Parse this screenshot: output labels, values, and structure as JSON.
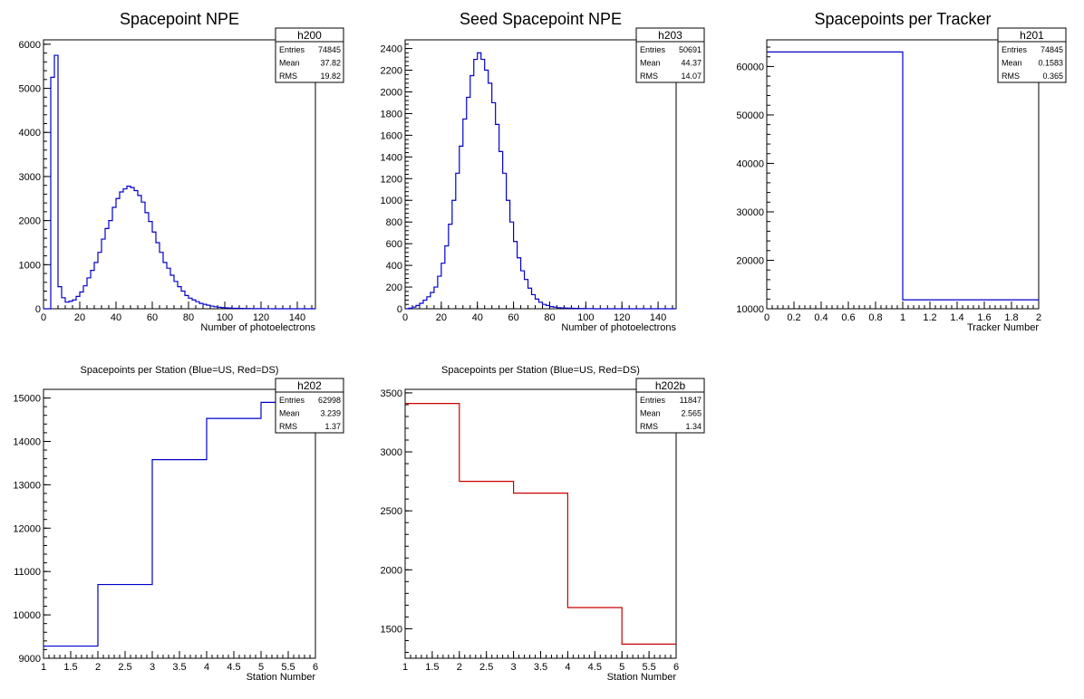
{
  "chart_data": [
    {
      "id": "h200",
      "type": "histogram",
      "title": "Spacepoint NPE",
      "xlabel": "Number of photoelectrons",
      "ylabel": "",
      "xlim": [
        0,
        150
      ],
      "ylim": [
        0,
        6100
      ],
      "xticks": [
        0,
        20,
        40,
        60,
        80,
        100,
        120,
        140
      ],
      "yticks": [
        0,
        1000,
        2000,
        3000,
        4000,
        5000,
        6000
      ],
      "color": "#0000cc",
      "bin_width": 2,
      "values": [
        0,
        0,
        5250,
        5750,
        500,
        250,
        150,
        170,
        200,
        280,
        380,
        520,
        700,
        870,
        1050,
        1280,
        1580,
        1820,
        2000,
        2300,
        2500,
        2650,
        2720,
        2780,
        2750,
        2680,
        2570,
        2420,
        2180,
        1980,
        1740,
        1500,
        1280,
        1050,
        920,
        760,
        620,
        500,
        400,
        300,
        240,
        200,
        160,
        120,
        100,
        80,
        60,
        45,
        35,
        25,
        20,
        15,
        12,
        10,
        8,
        6,
        5,
        4,
        3,
        2,
        2,
        1,
        1,
        0,
        0,
        0,
        0,
        0,
        0,
        0,
        0,
        0,
        0,
        0,
        0
      ],
      "stats": {
        "name": "h200",
        "entries_label": "Entries",
        "entries": "74845",
        "mean_label": "Mean",
        "mean": "37.82",
        "rms_label": "RMS",
        "rms": "19.82"
      }
    },
    {
      "id": "h203",
      "type": "histogram",
      "title": "Seed Spacepoint NPE",
      "xlabel": "Number of photoelectrons",
      "ylabel": "",
      "xlim": [
        0,
        150
      ],
      "ylim": [
        0,
        2480
      ],
      "xticks": [
        0,
        20,
        40,
        60,
        80,
        100,
        120,
        140
      ],
      "yticks": [
        0,
        200,
        400,
        600,
        800,
        1000,
        1200,
        1400,
        1600,
        1800,
        2000,
        2200,
        2400
      ],
      "color": "#0000cc",
      "bin_width": 2,
      "values": [
        0,
        5,
        15,
        30,
        50,
        80,
        110,
        150,
        200,
        300,
        420,
        580,
        780,
        1000,
        1250,
        1500,
        1750,
        1950,
        2150,
        2300,
        2360,
        2300,
        2200,
        2080,
        1900,
        1700,
        1450,
        1250,
        1000,
        800,
        620,
        470,
        350,
        270,
        190,
        130,
        90,
        60,
        40,
        30,
        20,
        15,
        10,
        8,
        6,
        5,
        4,
        3,
        2,
        2,
        1,
        1,
        0,
        0,
        0,
        0,
        0,
        0,
        0,
        0,
        0,
        0,
        0,
        0,
        0,
        0,
        0,
        0,
        0,
        0,
        0,
        0,
        0,
        0,
        0
      ],
      "stats": {
        "name": "h203",
        "entries_label": "Entries",
        "entries": "50691",
        "mean_label": "Mean",
        "mean": "44.37",
        "rms_label": "RMS",
        "rms": "14.07"
      }
    },
    {
      "id": "h201",
      "type": "histogram",
      "title": "Spacepoints per Tracker",
      "xlabel": "Tracker Number",
      "ylabel": "",
      "xlim": [
        0,
        2
      ],
      "ylim": [
        10000,
        65500
      ],
      "xticks": [
        0,
        0.2,
        0.4,
        0.6,
        0.8,
        1,
        1.2,
        1.4,
        1.6,
        1.8,
        2
      ],
      "yticks": [
        10000,
        20000,
        30000,
        40000,
        50000,
        60000
      ],
      "color": "#0000cc",
      "bin_width": 1,
      "values": [
        63000,
        11850
      ],
      "stats": {
        "name": "h201",
        "entries_label": "Entries",
        "entries": "74845",
        "mean_label": "Mean",
        "mean": "0.1583",
        "rms_label": "RMS",
        "rms": "0.365"
      }
    },
    {
      "id": "h202",
      "type": "histogram",
      "title": "Spacepoints per Station (Blue=US, Red=DS)",
      "xlabel": "Station Number",
      "ylabel": "",
      "xlim": [
        1,
        6
      ],
      "ylim": [
        9000,
        15200
      ],
      "xticks": [
        1,
        1.5,
        2,
        2.5,
        3,
        3.5,
        4,
        4.5,
        5,
        5.5,
        6
      ],
      "yticks": [
        9000,
        10000,
        11000,
        12000,
        13000,
        14000,
        15000
      ],
      "color": "#0000cc",
      "bin_width": 1,
      "values": [
        9280,
        10700,
        13580,
        14530,
        14900
      ],
      "stats": {
        "name": "h202",
        "entries_label": "Entries",
        "entries": "62998",
        "mean_label": "Mean",
        "mean": "3.239",
        "rms_label": "RMS",
        "rms": "1.37"
      }
    },
    {
      "id": "h202b",
      "type": "histogram",
      "title": "Spacepoints per Station (Blue=US, Red=DS)",
      "xlabel": "Station Number",
      "ylabel": "",
      "xlim": [
        1,
        6
      ],
      "ylim": [
        1250,
        3530
      ],
      "xticks": [
        1,
        1.5,
        2,
        2.5,
        3,
        3.5,
        4,
        4.5,
        5,
        5.5,
        6
      ],
      "yticks": [
        1500,
        2000,
        2500,
        3000,
        3500
      ],
      "color": "#cc0000",
      "bin_width": 1,
      "values": [
        3410,
        2750,
        2650,
        1680,
        1370
      ],
      "stats": {
        "name": "h202b",
        "entries_label": "Entries",
        "entries": "11847",
        "mean_label": "Mean",
        "mean": "2.565",
        "rms_label": "RMS",
        "rms": "1.34"
      }
    }
  ]
}
